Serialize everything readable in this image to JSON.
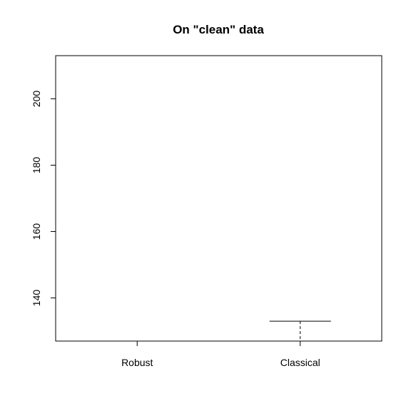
{
  "chart_data": {
    "type": "boxplot",
    "title": "On \"clean\" data",
    "xlabel": "",
    "ylabel": "",
    "categories": [
      "Robust",
      "Classical"
    ],
    "ylim": [
      127,
      213
    ],
    "yticks": [
      140,
      160,
      180,
      200
    ],
    "grid": false,
    "legend": "none",
    "boxes": [
      {
        "name": "Robust",
        "whisker_low": 127,
        "whisker_high": 127
      },
      {
        "name": "Classical",
        "whisker_low": 127,
        "whisker_high": 133
      }
    ]
  }
}
